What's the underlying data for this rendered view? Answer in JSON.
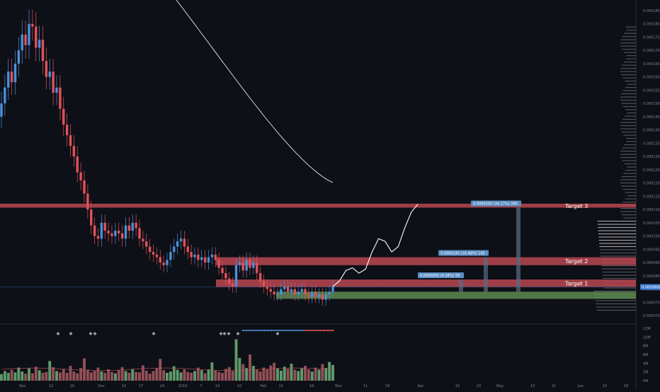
{
  "chart_data": {
    "type": "candlestick",
    "colors": {
      "background": "#0e1017",
      "up": "#4a90d9",
      "down": "#e0525a",
      "zone_red": "#b94650",
      "zone_green": "#5e8a4f",
      "vol_up": "#7cc88a",
      "vol_down": "#c0656f",
      "axis_text": "#7d8391",
      "label_bg": "#5b8fc4",
      "current_price_bg": "#3f7bd4",
      "projection": "#ffffff"
    },
    "x_axis": {
      "ticks": [
        "Nov",
        "12",
        "20",
        "Dec",
        "10",
        "17",
        "24",
        "2019",
        "7",
        "14",
        "22",
        "Feb",
        "11",
        "18",
        "Mar",
        "11",
        "18",
        "Apr",
        "15",
        "23",
        "May",
        "13",
        "21",
        "Jun",
        "10",
        "18"
      ]
    },
    "y_axis": {
      "min": 6.8e-05,
      "max": 0.000187,
      "ticks": [
        "0.0001850",
        "0.0001800",
        "0.0001750",
        "0.0001700",
        "0.0001650",
        "0.0001600",
        "0.0001550",
        "0.0001500",
        "0.0001450",
        "0.0001400",
        "0.0001350",
        "0.0001300",
        "0.0001250",
        "0.0001200",
        "0.0001150",
        "0.0001100",
        "0.0001050",
        "0.0001000",
        "0.0000950",
        "0.0000900",
        "0.0000850",
        "0.0000800",
        "0.0000750",
        "0.0000700"
      ],
      "current_price": "0.0000808"
    },
    "volume_axis": {
      "ticks": [
        "12M",
        "10M",
        "8M",
        "6M",
        "4M",
        "2M",
        "0M"
      ],
      "max": 12
    },
    "candles_close": [
      0.00015,
      0.000156,
      0.000162,
      0.000158,
      0.000165,
      0.00017,
      0.000176,
      0.000172,
      0.00018,
      0.000179,
      0.000171,
      0.000174,
      0.000166,
      0.00016,
      0.000162,
      0.000154,
      0.000156,
      0.000148,
      0.000142,
      0.000138,
      0.000134,
      0.00013,
      0.000124,
      0.000121,
      0.000116,
      0.00011,
      0.000104,
      0.0001,
      9.9e-05,
      0.000105,
      0.000102,
      0.000101,
      0.0001,
      0.000102,
      0.000101,
      9.9e-05,
      0.000104,
      0.000102,
      0.000105,
      0.000103,
      9.9e-05,
      9.8e-05,
      9.6e-05,
      9.4e-05,
      9.3e-05,
      9.2e-05,
      9e-05,
      8.9e-05,
      9.1e-05,
      9.4e-05,
      9.6e-05,
      9.8e-05,
      9.9e-05,
      9.6e-05,
      9.4e-05,
      9.2e-05,
      9.3e-05,
      9.1e-05,
      9.2e-05,
      9e-05,
      9.2e-05,
      9.3e-05,
      9.1e-05,
      8.8e-05,
      8.6e-05,
      8.4e-05,
      8.2e-05,
      8.1e-05,
      8.9e-05,
      9e-05,
      8.7e-05,
      9.1e-05,
      8.8e-05,
      9e-05,
      8.6e-05,
      8.3e-05,
      8.1e-05,
      8e-05,
      7.9e-05,
      7.8e-05,
      7.8e-05,
      8e-05,
      8.1e-05,
      7.9e-05,
      8e-05,
      7.8e-05,
      7.9e-05,
      8e-05,
      7.8e-05,
      7.7e-05,
      7.9e-05,
      7.7e-05,
      7.8e-05,
      7.6e-05,
      7.8e-05,
      7.9e-05,
      8.1e-05
    ],
    "candles_open": [
      0.000145,
      0.00015,
      0.000156,
      0.000162,
      0.000158,
      0.000165,
      0.00017,
      0.000176,
      0.000172,
      0.00018,
      0.000179,
      0.000171,
      0.000174,
      0.000166,
      0.00016,
      0.000162,
      0.000154,
      0.000156,
      0.000148,
      0.000142,
      0.000138,
      0.000134,
      0.00013,
      0.000124,
      0.000121,
      0.000116,
      0.00011,
      0.000104,
      0.0001,
      9.9e-05,
      0.000105,
      0.000102,
      0.000101,
      0.0001,
      0.000102,
      0.000101,
      9.9e-05,
      0.000104,
      0.000102,
      0.000105,
      0.000103,
      9.9e-05,
      9.8e-05,
      9.6e-05,
      9.4e-05,
      9.3e-05,
      9.2e-05,
      9e-05,
      8.9e-05,
      9.1e-05,
      9.4e-05,
      9.6e-05,
      9.8e-05,
      9.9e-05,
      9.6e-05,
      9.4e-05,
      9.2e-05,
      9.3e-05,
      9.1e-05,
      9.2e-05,
      9e-05,
      9.2e-05,
      9.3e-05,
      9.1e-05,
      8.8e-05,
      8.6e-05,
      8.4e-05,
      8.2e-05,
      8.1e-05,
      8.9e-05,
      9e-05,
      8.7e-05,
      9.1e-05,
      8.8e-05,
      9e-05,
      8.6e-05,
      8.3e-05,
      8.1e-05,
      8e-05,
      7.9e-05,
      7.8e-05,
      7.8e-05,
      8e-05,
      8.1e-05,
      7.9e-05,
      8e-05,
      7.8e-05,
      7.9e-05,
      8e-05,
      7.8e-05,
      7.7e-05,
      7.9e-05,
      7.7e-05,
      7.8e-05,
      7.6e-05,
      7.8e-05,
      7.9e-05
    ],
    "volumes": [
      1.5,
      2.2,
      1.8,
      2.5,
      1.9,
      3.0,
      2.1,
      1.6,
      2.8,
      1.7,
      3.2,
      2.4,
      1.8,
      2.0,
      4.5,
      3.1,
      2.2,
      1.9,
      2.6,
      1.8,
      3.4,
      2.1,
      1.7,
      2.9,
      5.1,
      2.5,
      1.9,
      2.3,
      3.0,
      2.1,
      1.8,
      2.6,
      2.0,
      1.7,
      2.4,
      3.1,
      2.2,
      1.8,
      2.7,
      2.0,
      1.9,
      3.5,
      2.3,
      1.6,
      2.2,
      2.8,
      5.0,
      2.4,
      1.8,
      2.1,
      3.3,
      2.5,
      1.9,
      2.6,
      2.0,
      1.8,
      2.2,
      3.0,
      2.4,
      1.7,
      2.6,
      4.2,
      2.3,
      2.0,
      1.8,
      2.7,
      3.1,
      2.2,
      9.5,
      5.2,
      3.8,
      2.9,
      6.0,
      3.4,
      2.5,
      2.1,
      3.0,
      2.6,
      3.5,
      4.1,
      2.8,
      2.3,
      3.2,
      2.7,
      3.9,
      2.5,
      2.2,
      2.8,
      3.4,
      2.6,
      2.1,
      3.0,
      2.5,
      3.8,
      2.9,
      4.3,
      3.6
    ],
    "zones": [
      {
        "name": "Target 3",
        "type": "resistance",
        "y_low": 0.0001107,
        "y_high": 0.0001122
      },
      {
        "name": "Target 2",
        "type": "resistance",
        "y_low": 8.9e-05,
        "y_high": 9.2e-05
      },
      {
        "name": "Target 1",
        "type": "resistance",
        "y_low": 8.08e-05,
        "y_high": 8.36e-05
      },
      {
        "name": "",
        "type": "support",
        "y_low": 7.63e-05,
        "y_high": 7.9e-05
      }
    ],
    "targets": [
      {
        "label": "Target 3",
        "measure": "0.0000300 (36.27%) 390"
      },
      {
        "label": "Target 2",
        "measure": "0.0000145 (16.48%) 145"
      },
      {
        "label": "Target 1",
        "measure": "0.0000050 (6.28%) 59"
      }
    ],
    "projection_path": [
      8.1e-05,
      8.3e-05,
      8.7e-05,
      8.8e-05,
      8.6e-05,
      8.75e-05,
      9.4e-05,
      9.9e-05,
      9.8e-05,
      9.4e-05,
      9.6e-05,
      0.000103,
      0.000109,
      0.000112
    ]
  }
}
